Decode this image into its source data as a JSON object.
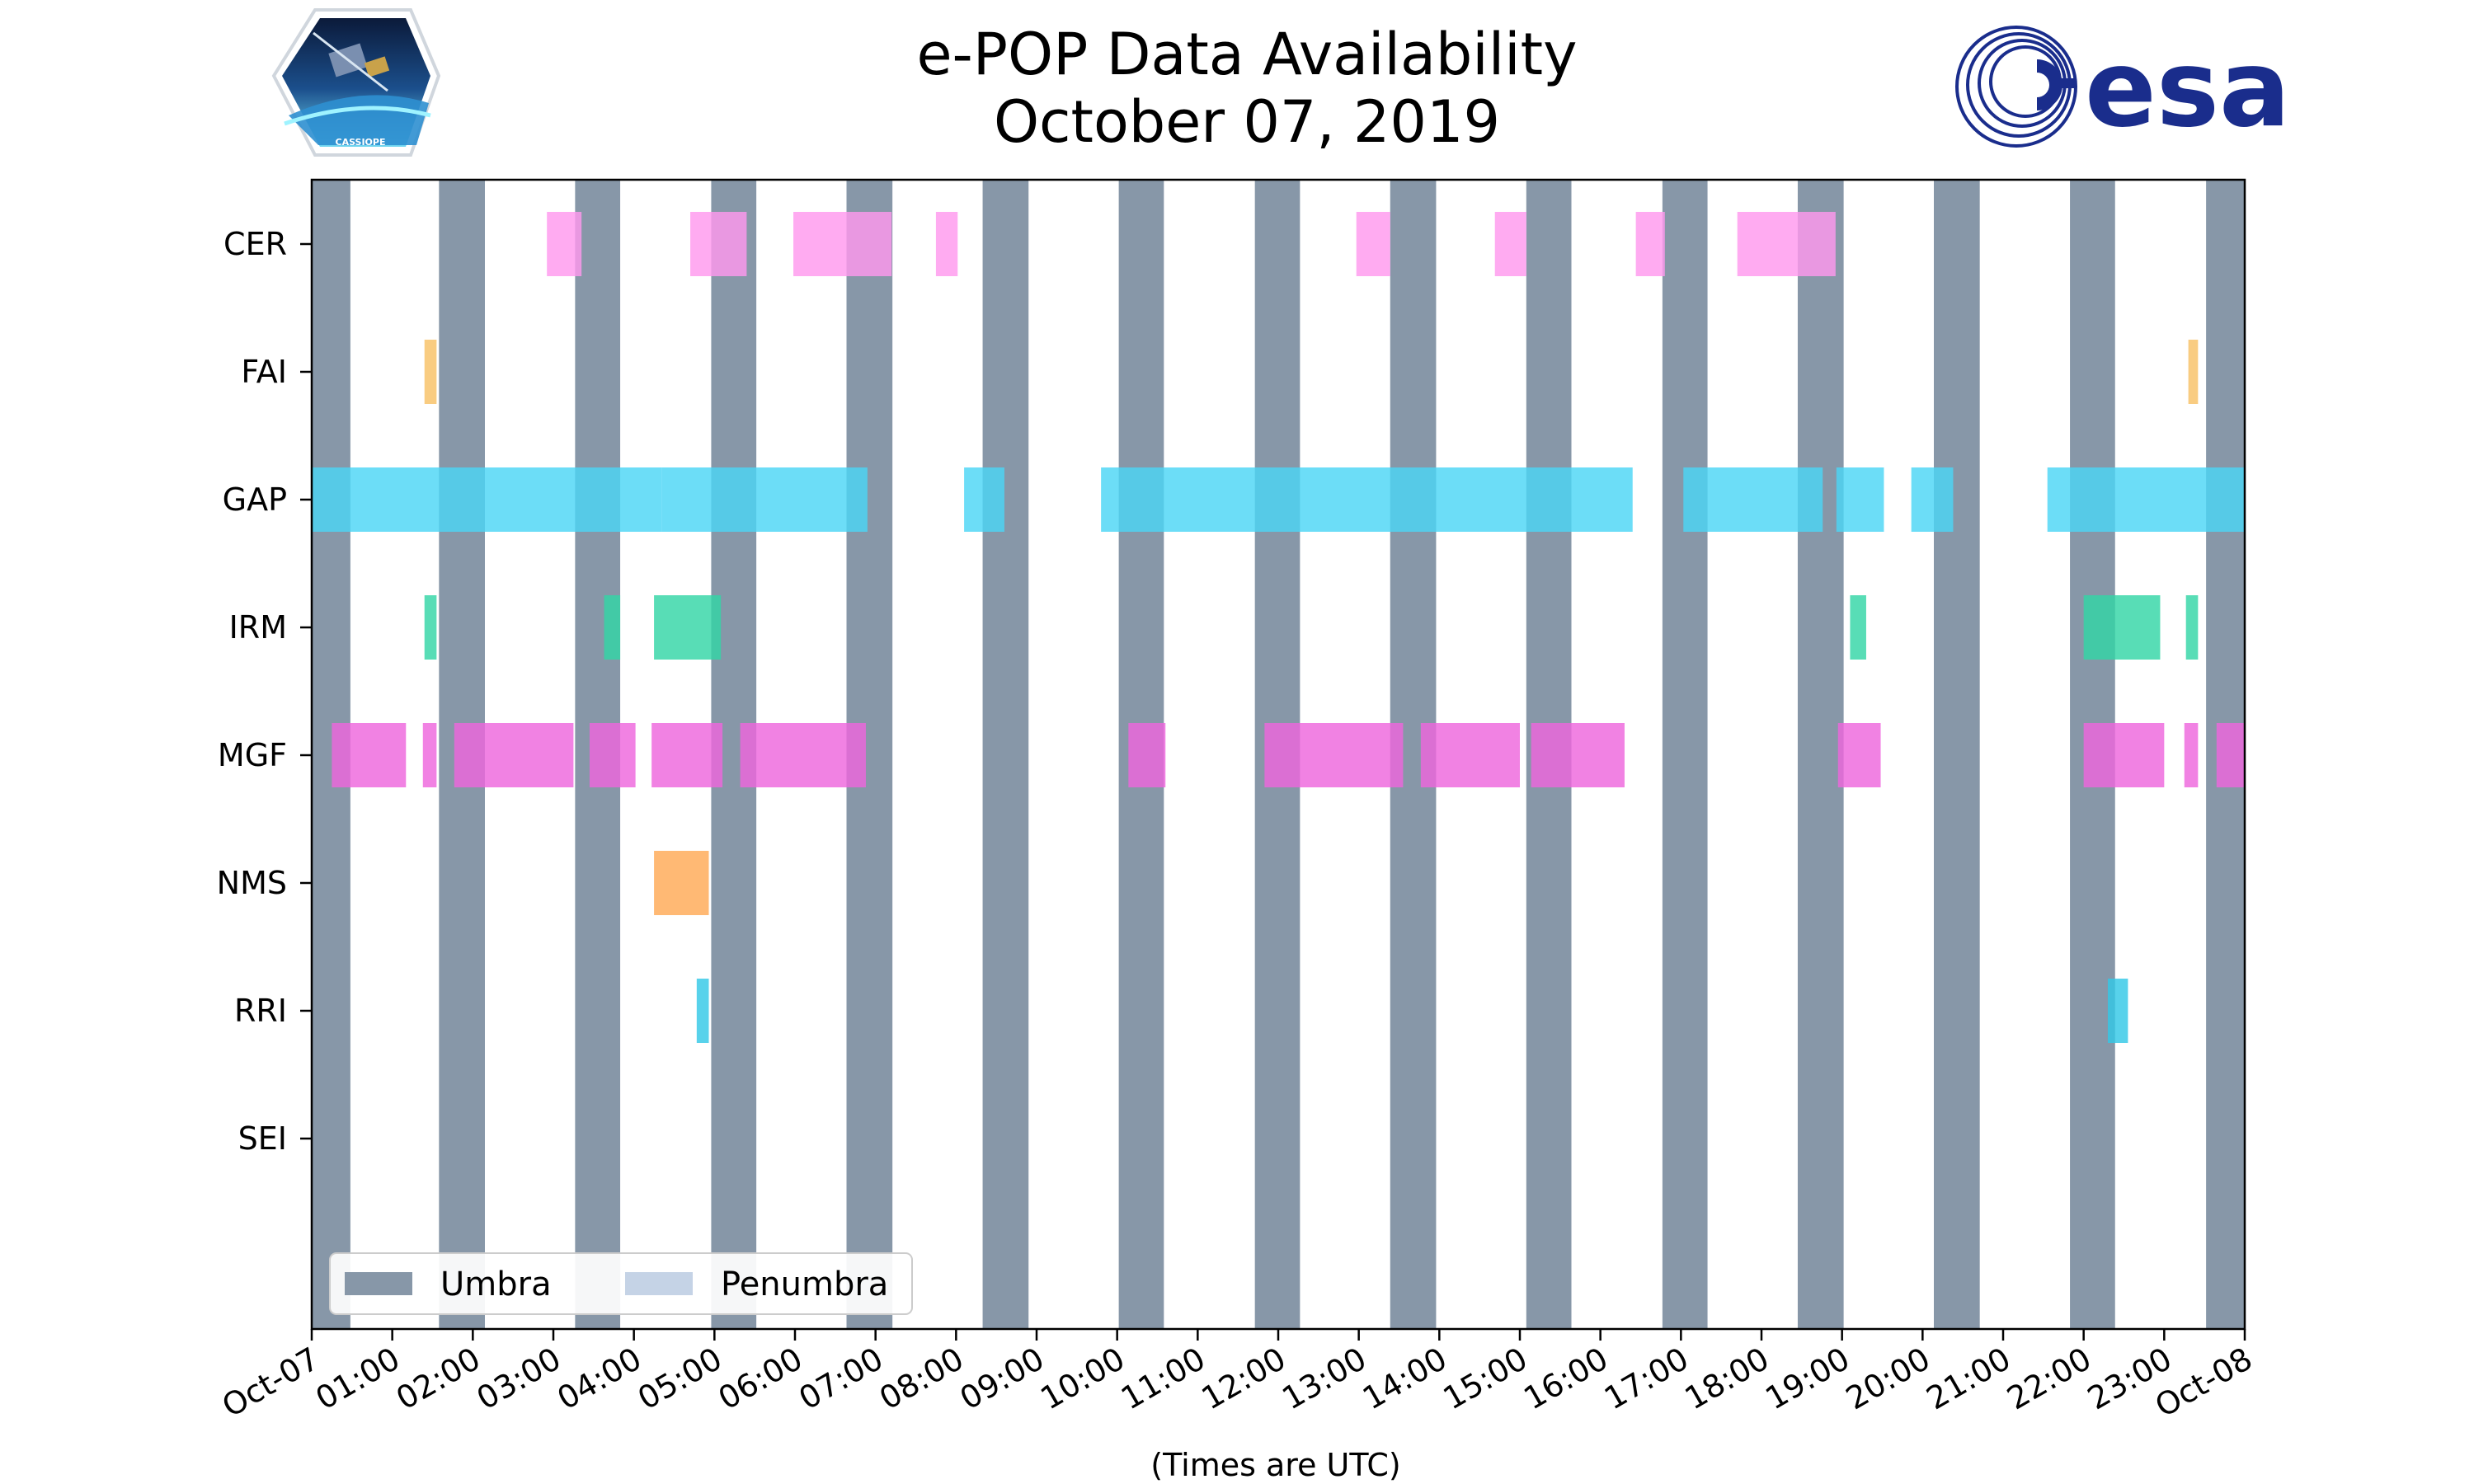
{
  "chart_data": {
    "type": "timeline",
    "title": [
      "e-POP Data Availability",
      "October 07, 2019"
    ],
    "xlabel": "(Times are UTC)",
    "x_unit": "hours since 2019-10-07 00:00 UTC",
    "xlim": [
      0,
      24
    ],
    "x_ticks": [
      {
        "h": 0,
        "label": "Oct-07"
      },
      {
        "h": 1,
        "label": "01:00"
      },
      {
        "h": 2,
        "label": "02:00"
      },
      {
        "h": 3,
        "label": "03:00"
      },
      {
        "h": 4,
        "label": "04:00"
      },
      {
        "h": 5,
        "label": "05:00"
      },
      {
        "h": 6,
        "label": "06:00"
      },
      {
        "h": 7,
        "label": "07:00"
      },
      {
        "h": 8,
        "label": "08:00"
      },
      {
        "h": 9,
        "label": "09:00"
      },
      {
        "h": 10,
        "label": "10:00"
      },
      {
        "h": 11,
        "label": "11:00"
      },
      {
        "h": 12,
        "label": "12:00"
      },
      {
        "h": 13,
        "label": "13:00"
      },
      {
        "h": 14,
        "label": "14:00"
      },
      {
        "h": 15,
        "label": "15:00"
      },
      {
        "h": 16,
        "label": "16:00"
      },
      {
        "h": 17,
        "label": "17:00"
      },
      {
        "h": 18,
        "label": "18:00"
      },
      {
        "h": 19,
        "label": "19:00"
      },
      {
        "h": 20,
        "label": "20:00"
      },
      {
        "h": 21,
        "label": "21:00"
      },
      {
        "h": 22,
        "label": "22:00"
      },
      {
        "h": 23,
        "label": "23:00"
      },
      {
        "h": 24,
        "label": "Oct-08"
      }
    ],
    "categories": [
      "CER",
      "FAI",
      "GAP",
      "IRM",
      "MGF",
      "NMS",
      "RRI",
      "SEI"
    ],
    "umbra": [
      [
        0.0,
        0.48
      ],
      [
        1.58,
        2.15
      ],
      [
        3.27,
        3.83
      ],
      [
        4.96,
        5.52
      ],
      [
        6.64,
        7.21
      ],
      [
        8.33,
        8.9
      ],
      [
        10.02,
        10.58
      ],
      [
        11.71,
        12.27
      ],
      [
        13.39,
        13.96
      ],
      [
        15.08,
        15.64
      ],
      [
        16.77,
        17.33
      ],
      [
        18.45,
        19.02
      ],
      [
        20.14,
        20.71
      ],
      [
        21.83,
        22.39
      ],
      [
        23.52,
        24.0
      ]
    ],
    "series": [
      {
        "name": "CER",
        "color": "#ff99ee",
        "intervals": [
          [
            2.92,
            3.35
          ],
          [
            4.7,
            5.4
          ],
          [
            5.98,
            7.2
          ],
          [
            7.75,
            8.02
          ],
          [
            12.97,
            13.39
          ],
          [
            14.69,
            15.08
          ],
          [
            16.44,
            16.8
          ],
          [
            17.7,
            18.92
          ]
        ]
      },
      {
        "name": "FAI",
        "color": "#f8c165",
        "intervals": [
          [
            1.4,
            1.55
          ],
          [
            23.3,
            23.42
          ]
        ]
      },
      {
        "name": "GAP",
        "color": "#4cd6f5",
        "intervals": [
          [
            0.0,
            4.35
          ],
          [
            4.35,
            6.9
          ],
          [
            8.1,
            8.6
          ],
          [
            9.8,
            16.4
          ],
          [
            17.03,
            18.76
          ],
          [
            18.93,
            19.52
          ],
          [
            19.86,
            20.38
          ],
          [
            21.55,
            24.0
          ]
        ]
      },
      {
        "name": "IRM",
        "color": "#33d6a6",
        "intervals": [
          [
            1.4,
            1.55
          ],
          [
            3.63,
            3.83
          ],
          [
            4.25,
            5.08
          ],
          [
            19.1,
            19.3
          ],
          [
            22.0,
            22.95
          ],
          [
            23.27,
            23.42
          ]
        ]
      },
      {
        "name": "MGF",
        "color": "#ee66dd",
        "intervals": [
          [
            0.25,
            1.17
          ],
          [
            1.38,
            1.55
          ],
          [
            1.77,
            3.25
          ],
          [
            3.45,
            4.02
          ],
          [
            4.22,
            5.1
          ],
          [
            5.32,
            6.88
          ],
          [
            10.14,
            10.6
          ],
          [
            11.83,
            13.55
          ],
          [
            13.77,
            15.0
          ],
          [
            15.14,
            16.3
          ],
          [
            18.95,
            19.48
          ],
          [
            22.0,
            23.0
          ],
          [
            23.25,
            23.42
          ],
          [
            23.65,
            24.0
          ]
        ]
      },
      {
        "name": "NMS",
        "color": "#ffaa55",
        "intervals": [
          [
            4.25,
            4.93
          ]
        ]
      },
      {
        "name": "RRI",
        "color": "#33c8e6",
        "intervals": [
          [
            4.78,
            4.93
          ],
          [
            22.3,
            22.55
          ]
        ]
      },
      {
        "name": "SEI",
        "color": "#cccccc",
        "intervals": []
      }
    ],
    "legend": {
      "position": "lower-left",
      "entries": [
        {
          "label": "Umbra",
          "color": "#8797a8"
        },
        {
          "label": "Penumbra",
          "color": "#c5d3e6"
        }
      ]
    },
    "colors": {
      "umbra": "#8797a8",
      "penumbra": "#c5d3e6",
      "axis": "#000000"
    }
  },
  "logos": {
    "left": {
      "name": "CASSIOPE mission patch",
      "text": "CASSIOPE"
    },
    "right": {
      "name": "ESA logo",
      "text": "esa",
      "color": "#1a2d8c"
    }
  }
}
